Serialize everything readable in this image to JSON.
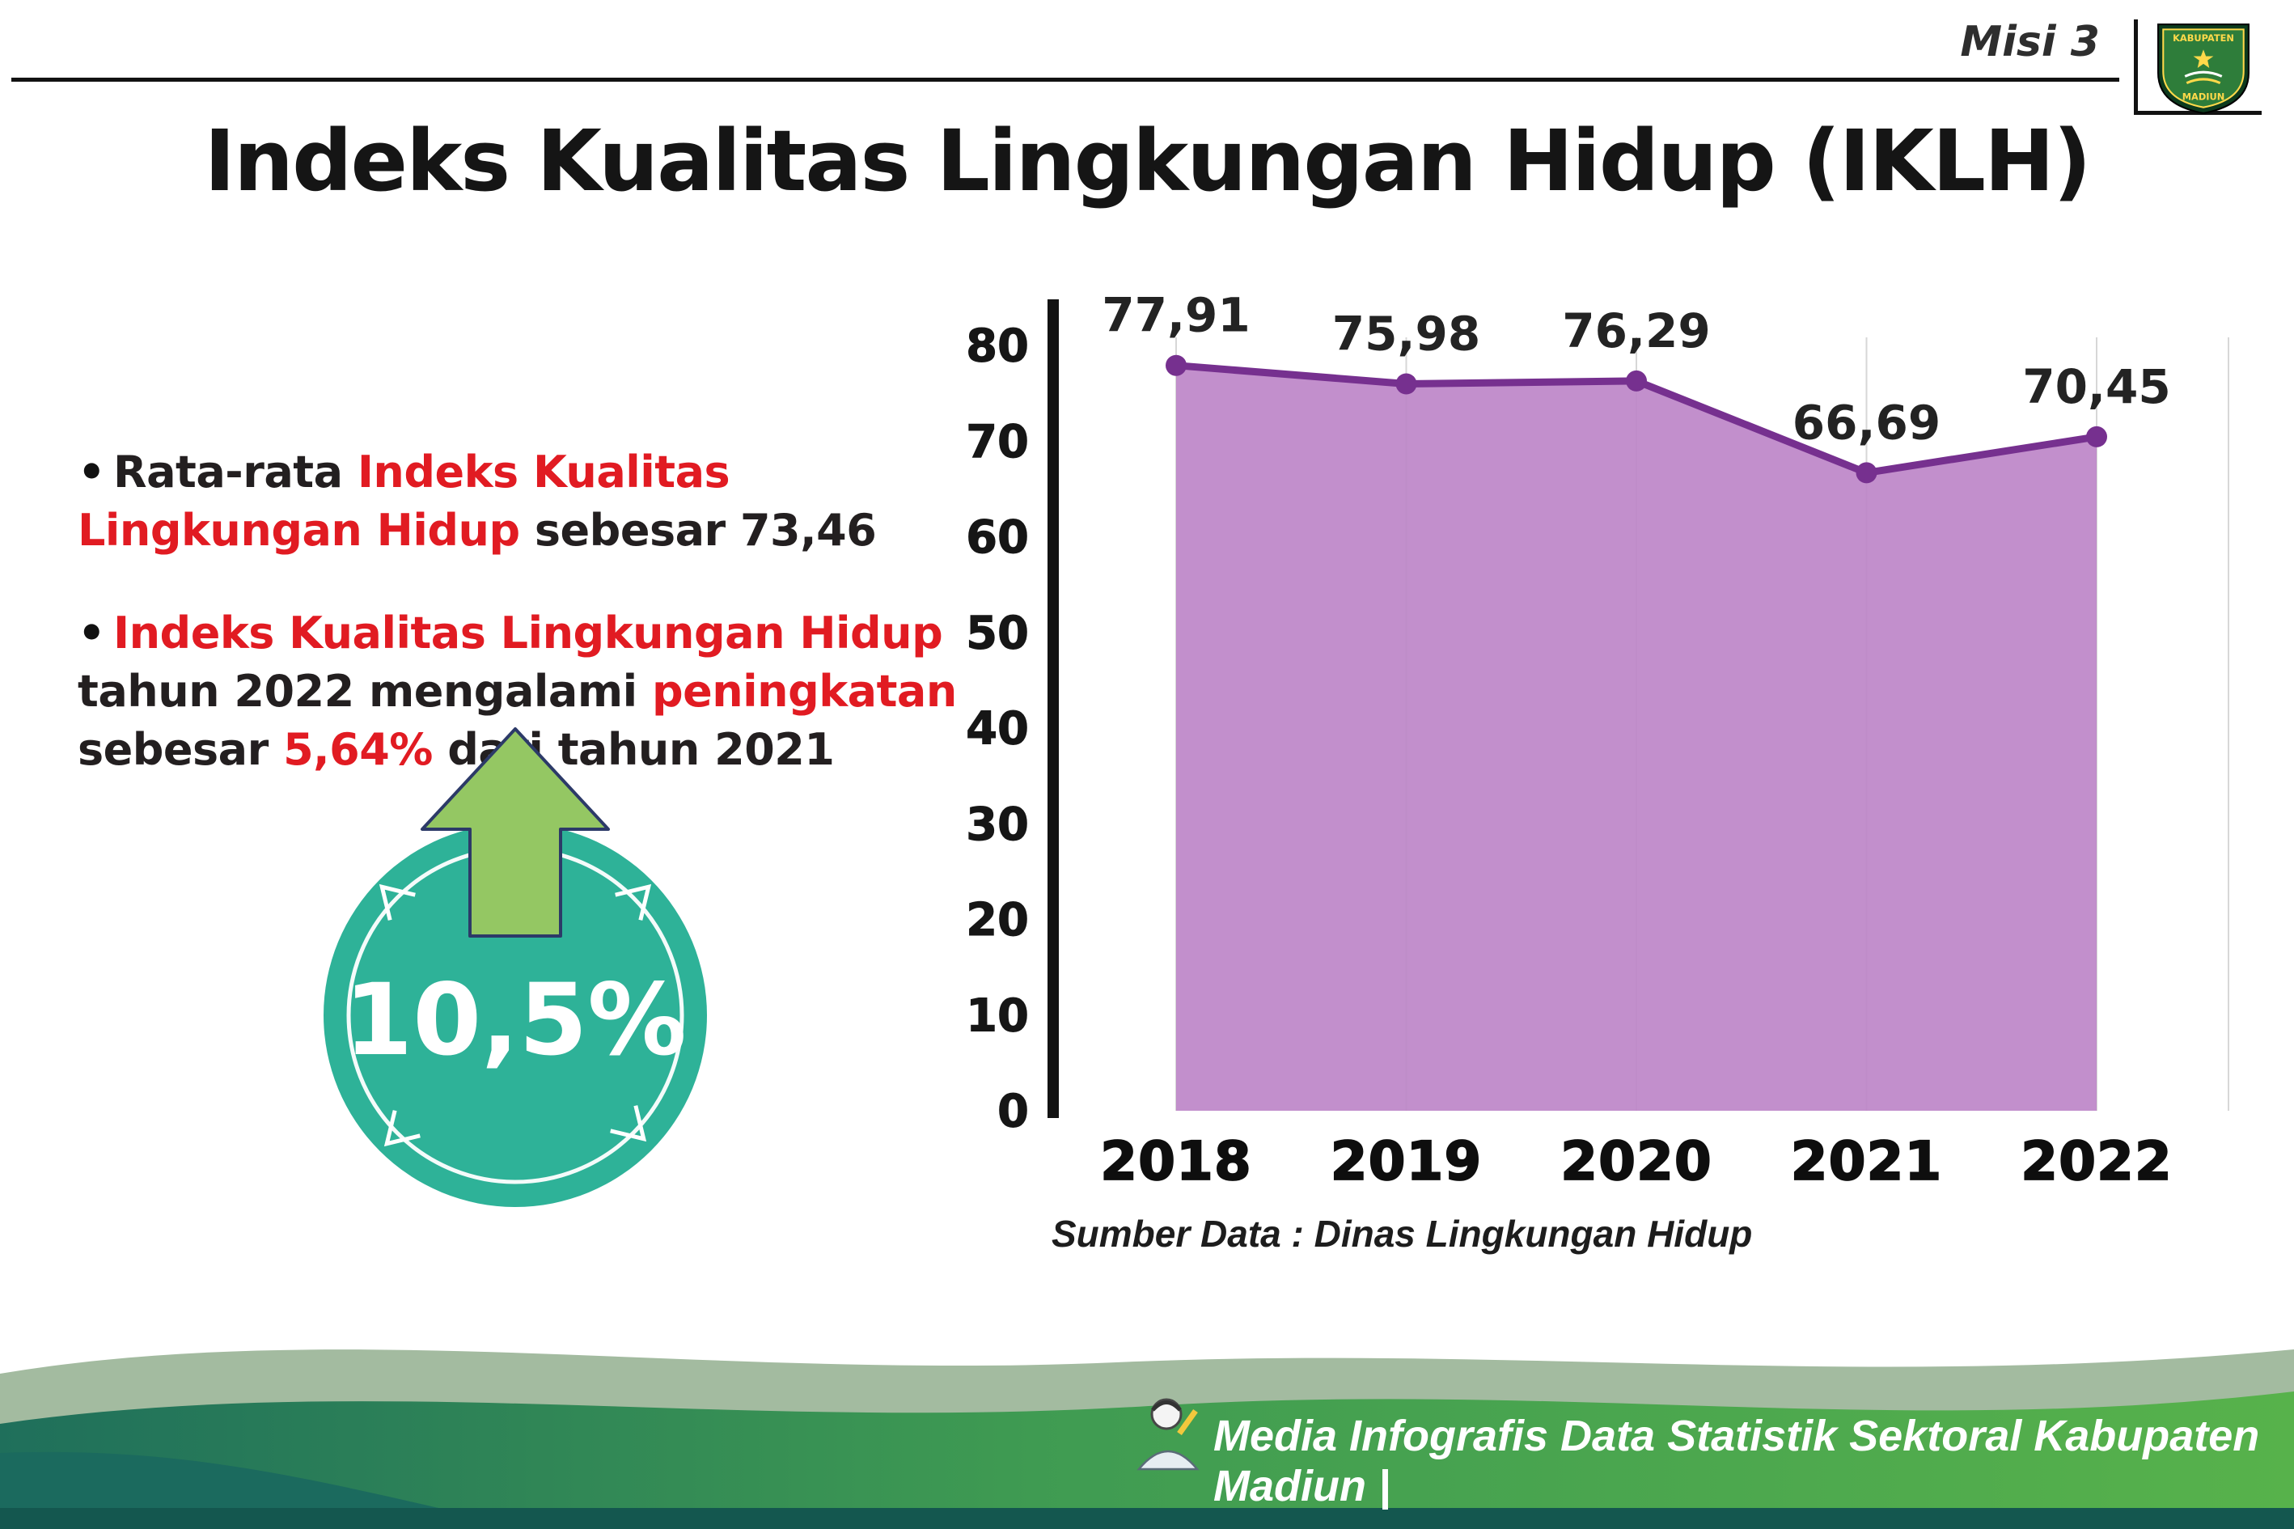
{
  "header": {
    "misi_label": "Misi 3",
    "logo_text_top": "KABUPATEN",
    "logo_text_bottom": "MADIUN"
  },
  "title": "Indeks Kualitas Lingkungan Hidup (IKLH)",
  "bullets": [
    {
      "segments": [
        {
          "text": "Rata-rata ",
          "color": "dark"
        },
        {
          "text": "Indeks Kualitas Lingkungan Hidup",
          "color": "red"
        },
        {
          "text": " sebesar 73,46",
          "color": "dark"
        }
      ]
    },
    {
      "segments": [
        {
          "text": "Indeks Kualitas Lingkungan Hidup",
          "color": "red"
        },
        {
          "text": " tahun 2022 mengalami ",
          "color": "dark"
        },
        {
          "text": "peningkatan",
          "color": "red"
        },
        {
          "text": " sebesar ",
          "color": "dark"
        },
        {
          "text": "5,64%",
          "color": "red"
        },
        {
          "text": " dari tahun 2021",
          "color": "dark"
        }
      ]
    }
  ],
  "badge": {
    "value": "10,5%",
    "direction": "up",
    "circle_color": "#2eb298",
    "arrow_color": "#94c763",
    "arrow_outline": "#2c3a68"
  },
  "chart_data": {
    "type": "area",
    "categories": [
      "2018",
      "2019",
      "2020",
      "2021",
      "2022"
    ],
    "values": [
      77.91,
      75.98,
      76.29,
      66.69,
      70.45
    ],
    "value_labels": [
      "77,91",
      "75,98",
      "76,29",
      "66,69",
      "70,45"
    ],
    "title": "",
    "xlabel": "",
    "ylabel": "",
    "ylim": [
      0,
      80
    ],
    "yticks": [
      0,
      10,
      20,
      30,
      40,
      50,
      60,
      70,
      80
    ],
    "grid": true,
    "legend": "none",
    "fill_color": "#bd86c8",
    "line_color": "#76308f",
    "marker_color": "#76308f"
  },
  "source": "Sumber Data : Dinas Lingkungan Hidup",
  "footer": {
    "credit": "Media Infografis Data Statistik Sektoral Kabupaten Madiun |"
  }
}
